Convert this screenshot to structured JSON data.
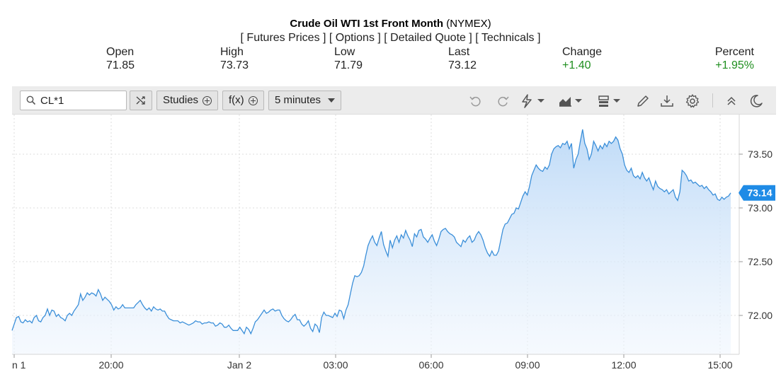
{
  "header": {
    "title_bold": "Crude Oil WTI 1st Front Month",
    "title_suffix": " (NYMEX)",
    "links": [
      "[ Futures Prices ]",
      "[ Options ]",
      "[ Detailed Quote ]",
      "[ Technicals ]"
    ]
  },
  "stats": [
    {
      "label": "Open",
      "value": "71.85",
      "color": "neutral"
    },
    {
      "label": "High",
      "value": "73.73",
      "color": "neutral"
    },
    {
      "label": "Low",
      "value": "71.79",
      "color": "neutral"
    },
    {
      "label": "Last",
      "value": "73.12",
      "color": "neutral"
    },
    {
      "label": "Change",
      "value": "+1.40",
      "color": "#1e8e1e"
    },
    {
      "label": "Percent",
      "value": "+1.95%",
      "color": "#1e8e1e"
    }
  ],
  "toolbar": {
    "symbol_value": "CL*1",
    "studies_label": "Studies",
    "fx_label": "f(x)",
    "interval_label": "5 minutes",
    "icons": [
      "search-icon",
      "compare-icon",
      "undo-icon",
      "redo-icon",
      "lightning-icon",
      "chart-type-icon",
      "layout-icon",
      "draw-icon",
      "download-icon",
      "settings-icon",
      "collapse-icon",
      "dark-mode-icon"
    ]
  },
  "chart_data": {
    "type": "area",
    "x_ticks": [
      "n 1",
      "20:00",
      "Jan 2",
      "03:00",
      "06:00",
      "09:00",
      "12:00",
      "15:00"
    ],
    "y_ticks": [
      "72.00",
      "72.50",
      "73.00",
      "73.50"
    ],
    "ylim": [
      71.7,
      73.8
    ],
    "last_value_label": "73.14",
    "line_color": "#3b8fd9",
    "fill_color": "#cfe4fa",
    "grid": "dotted",
    "values": [
      71.86,
      71.92,
      71.98,
      71.99,
      71.94,
      71.93,
      71.96,
      71.94,
      71.95,
      71.93,
      71.98,
      72.0,
      71.95,
      71.94,
      71.98,
      72.0,
      72.06,
      72.0,
      72.05,
      72.04,
      71.99,
      72.01,
      71.98,
      71.97,
      71.95,
      72.0,
      72.02,
      72.0,
      72.04,
      72.07,
      72.1,
      72.2,
      72.14,
      72.17,
      72.21,
      72.19,
      72.21,
      72.2,
      72.18,
      72.24,
      72.2,
      72.14,
      72.17,
      72.15,
      72.13,
      72.1,
      72.05,
      72.08,
      72.06,
      72.07,
      72.1,
      72.07,
      72.07,
      72.07,
      72.07,
      72.07,
      72.1,
      72.12,
      72.14,
      72.1,
      72.07,
      72.05,
      72.07,
      72.04,
      72.08,
      72.06,
      72.05,
      72.06,
      72.04,
      72.04,
      72.0,
      71.97,
      71.96,
      71.95,
      71.95,
      71.95,
      71.93,
      71.94,
      71.93,
      71.92,
      71.91,
      71.92,
      71.93,
      71.95,
      71.94,
      71.94,
      71.92,
      71.93,
      71.93,
      71.94,
      71.93,
      71.93,
      71.9,
      71.91,
      71.93,
      71.92,
      71.89,
      71.89,
      71.91,
      71.88,
      71.86,
      71.86,
      71.86,
      71.89,
      71.86,
      71.83,
      71.89,
      71.87,
      71.83,
      71.88,
      71.94,
      71.96,
      71.99,
      72.02,
      72.05,
      72.02,
      72.03,
      72.05,
      72.06,
      72.04,
      72.05,
      72.05,
      72.0,
      71.97,
      71.95,
      71.94,
      71.96,
      71.99,
      72.01,
      71.96,
      71.96,
      71.92,
      71.9,
      71.92,
      71.95,
      71.88,
      71.85,
      71.92,
      71.9,
      71.84,
      71.98,
      72.03,
      72.0,
      72.0,
      71.99,
      71.98,
      72.02,
      71.99,
      72.05,
      72.04,
      71.97,
      72.05,
      72.1,
      72.2,
      72.3,
      72.37,
      72.36,
      72.37,
      72.4,
      72.46,
      72.56,
      72.65,
      72.7,
      72.74,
      72.68,
      72.65,
      72.72,
      72.78,
      72.66,
      72.6,
      72.55,
      72.7,
      72.63,
      72.7,
      72.74,
      72.68,
      72.75,
      72.72,
      72.79,
      72.74,
      72.7,
      72.64,
      72.76,
      72.73,
      72.79,
      72.8,
      72.73,
      72.71,
      72.68,
      72.72,
      72.75,
      72.69,
      72.65,
      72.71,
      72.78,
      72.8,
      72.81,
      72.78,
      72.76,
      72.75,
      72.73,
      72.68,
      72.66,
      72.64,
      72.7,
      72.68,
      72.72,
      72.74,
      72.68,
      72.7,
      72.75,
      72.78,
      72.75,
      72.7,
      72.63,
      72.58,
      72.55,
      72.6,
      72.56,
      72.56,
      72.6,
      72.7,
      72.8,
      72.85,
      72.86,
      72.9,
      72.94,
      72.95,
      73.0,
      72.99,
      73.05,
      73.11,
      73.15,
      73.12,
      73.2,
      73.3,
      73.35,
      73.4,
      73.37,
      73.35,
      73.34,
      73.38,
      73.36,
      73.4,
      73.5,
      73.55,
      73.57,
      73.58,
      73.56,
      73.6,
      73.59,
      73.62,
      73.55,
      73.6,
      73.37,
      73.45,
      73.5,
      73.62,
      73.73,
      73.6,
      73.55,
      73.45,
      73.5,
      73.62,
      73.58,
      73.53,
      73.58,
      73.55,
      73.6,
      73.57,
      73.62,
      73.6,
      73.62,
      73.66,
      73.63,
      73.55,
      73.5,
      73.4,
      73.35,
      73.33,
      73.37,
      73.3,
      73.28,
      73.3,
      73.27,
      73.33,
      73.28,
      73.25,
      73.28,
      73.22,
      73.17,
      73.25,
      73.2,
      73.18,
      73.17,
      73.15,
      73.17,
      73.13,
      73.15,
      73.17,
      73.1,
      73.07,
      73.15,
      73.35,
      73.33,
      73.3,
      73.25,
      73.26,
      73.23,
      73.24,
      73.22,
      73.2,
      73.21,
      73.18,
      73.2,
      73.17,
      73.15,
      73.12,
      73.13,
      73.08,
      73.07,
      73.1,
      73.08,
      73.1,
      73.11,
      73.14
    ]
  }
}
